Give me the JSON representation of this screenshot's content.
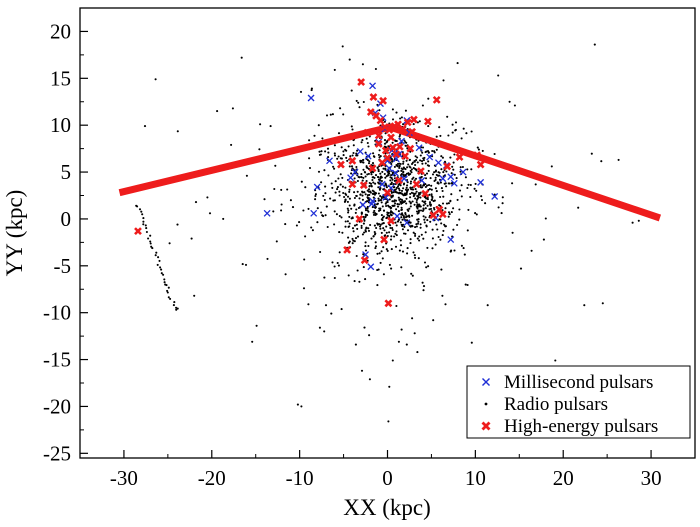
{
  "chart_data": {
    "type": "scatter",
    "title": "",
    "xlabel": "XX (kpc)",
    "ylabel": "YY (kpc)",
    "xlim": [
      -35,
      35
    ],
    "ylim": [
      -25.5,
      22.5
    ],
    "xticks": [
      -30,
      -20,
      -10,
      0,
      10,
      20,
      30
    ],
    "yticks": [
      -25,
      -20,
      -15,
      -10,
      -5,
      0,
      5,
      10,
      15,
      20
    ],
    "xtick_labels": [
      "-30",
      "-20",
      "-10",
      "0",
      "10",
      "20",
      "30"
    ],
    "ytick_labels": [
      "-25",
      "-20",
      "-15",
      "-10",
      "-5",
      "0",
      "5",
      "10",
      "15",
      "20"
    ],
    "grid": false,
    "legend_position": "bottom-right",
    "legend": [
      "Millisecond pulsars",
      "Radio pulsars",
      "High-energy pulsars"
    ],
    "colors": {
      "millisecond": "#1f2fd6",
      "radio": "#000000",
      "high_energy": "#ee1c1c",
      "line": "#ee1c1c"
    },
    "line_series": {
      "x": [
        -30.5,
        0.3,
        31
      ],
      "y": [
        2.8,
        9.8,
        0.1
      ]
    },
    "series": [
      {
        "name": "Millisecond pulsars",
        "marker": "x",
        "x": [
          -8.7,
          -8.4,
          -8.0,
          -6.6,
          -4.2,
          -3.1,
          -2.8,
          -2.2,
          -1.7,
          -1.4,
          -1.0,
          -0.8,
          -0.5,
          -0.3,
          0.0,
          0.2,
          0.5,
          0.8,
          1.0,
          1.3,
          1.6,
          1.9,
          2.2,
          2.5,
          0.4,
          -0.2,
          1.1,
          -1.9,
          -2.5,
          4.8,
          5.8,
          6.3,
          6.7,
          7.2,
          7.6,
          8.6,
          10.6,
          12.2,
          7.2,
          5.5,
          2.2,
          -1.8,
          -1.7,
          -3.7,
          -13.7,
          1.2,
          0.9,
          -0.6,
          3.6,
          3.9
        ],
        "y": [
          12.9,
          0.6,
          3.4,
          6.2,
          4.4,
          7.2,
          1.5,
          6.7,
          14.2,
          11.3,
          8.2,
          12.3,
          10.8,
          9.6,
          6.2,
          5.4,
          7.3,
          7.0,
          6.4,
          6.9,
          8.3,
          4.3,
          10.5,
          9.2,
          3.3,
          2.3,
          0.3,
          -5.1,
          -3.8,
          6.6,
          6.0,
          4.3,
          5.7,
          4.5,
          3.8,
          5.0,
          3.9,
          2.4,
          -2.2,
          0.1,
          -0.4,
          1.6,
          1.9,
          5.0,
          0.6,
          4.1,
          4.9,
          3.7,
          7.6,
          4.1
        ]
      },
      {
        "name": "High-energy pulsars",
        "marker": "filled-x",
        "x": [
          -28.4,
          -5.3,
          -4.6,
          -4.0,
          -3.0,
          -2.6,
          -2.3,
          -1.6,
          -1.3,
          -1.0,
          -0.8,
          -0.6,
          -0.5,
          -0.3,
          -0.2,
          0.0,
          0.2,
          0.4,
          0.6,
          0.8,
          1.0,
          1.2,
          1.4,
          1.7,
          2.0,
          2.3,
          2.6,
          3.0,
          3.3,
          3.8,
          4.3,
          5.2,
          5.6,
          5.9,
          6.3,
          6.8,
          8.2,
          10.2,
          10.6,
          -1.0,
          -0.4,
          0.4,
          1.3,
          0.1,
          -3.2,
          -4.0,
          -2.7,
          -1.9,
          0.0,
          2.8,
          4.6,
          -1.7
        ],
        "y": [
          -1.3,
          5.8,
          -3.3,
          3.7,
          14.6,
          -4.4,
          9.2,
          13.0,
          11.0,
          8.0,
          10.5,
          6.0,
          12.6,
          9.8,
          7.3,
          6.5,
          9.5,
          8.7,
          7.6,
          9.9,
          6.9,
          10.1,
          7.7,
          9.6,
          6.7,
          10.3,
          7.5,
          10.6,
          3.7,
          5.1,
          2.7,
          0.4,
          12.7,
          1.0,
          0.5,
          5.6,
          6.6,
          6.8,
          5.8,
          8.9,
          -2.2,
          -0.2,
          4.1,
          -9.0,
          0.0,
          6.2,
          3.6,
          11.4,
          2.8,
          9.3,
          10.4,
          5.4
        ]
      }
    ],
    "radio_pulsars": {
      "name": "Radio pulsars",
      "marker": "dot",
      "generated": true,
      "center": [
        0.5,
        3.0
      ],
      "spread": [
        3.6,
        3.2
      ],
      "count": 1250,
      "outliers": {
        "x": [
          -26.4,
          -28.6,
          -27.6,
          -23.9,
          -21.8,
          -20.5,
          -19.4,
          -18.7,
          -17.8,
          -16.6,
          -14.5,
          -13.3,
          -12.1,
          -11.0,
          -9.5,
          -9.0,
          -8.6,
          -7.7,
          -7.0,
          -6.4,
          -6.0,
          -5.1,
          -4.3,
          -3.6,
          -3.2,
          -2.8,
          -2.1,
          -1.0,
          0.1,
          1.3,
          2.2,
          3.1,
          4.0,
          5.4,
          6.6,
          7.8,
          8.9,
          10.1,
          11.4,
          12.6,
          13.9,
          15.2,
          16.4,
          17.8,
          19.1,
          20.8,
          22.4,
          23.6,
          24.5,
          26.3,
          27.9,
          28.6,
          -15.4,
          -14.9,
          -11.6,
          -10.2,
          -9.8,
          -7.2,
          8.8,
          10.4,
          14.5,
          18.7,
          21.7,
          -20.2,
          -22.3,
          -13.0,
          -12.6,
          -16.1,
          -2.0,
          0.2,
          0.6,
          3.4,
          5.2,
          7.4,
          12.2,
          -25.3,
          -24.8,
          -22.0,
          -16.0,
          -14.0,
          -6.0,
          -5.5,
          -3.4,
          -2.9,
          1.6,
          2.8,
          4.1,
          6.8,
          9.6,
          13.0
        ],
        "y": [
          14.9,
          1.4,
          9.9,
          -0.6,
          1.8,
          2.3,
          11.5,
          0.0,
          7.9,
          17.2,
          10.1,
          9.9,
          3.1,
          2.0,
          -7.4,
          -9.1,
          13.9,
          -11.6,
          -9.2,
          -10.1,
          15.9,
          18.4,
          17.0,
          -13.4,
          -6.7,
          16.5,
          -12.4,
          5.1,
          -21.6,
          -13.1,
          -13.4,
          -12.2,
          -6.8,
          5.7,
          -9.1,
          10.3,
          -7.0,
          3.0,
          -9.2,
          15.3,
          12.5,
          -5.3,
          -3.4,
          -2.2,
          -15.1,
          3.1,
          -9.2,
          18.6,
          -9.0,
          6.3,
          -0.4,
          -0.2,
          -13.1,
          -11.4,
          -5.9,
          -19.8,
          -20.0,
          -12.0,
          -3.8,
          7.4,
          12.1,
          5.6,
          1.2,
          0.6,
          -2.1,
          0.8,
          -2.4,
          -4.9,
          -17.1,
          -17.9,
          -15.1,
          -14.2,
          -10.8,
          -1.9,
          2.6,
          -7.0,
          -2.6,
          -8.2,
          4.6,
          2.1,
          -6.3,
          -1.4,
          -5.5,
          -16.2,
          -11.8,
          -10.6,
          -7.6,
          10.9,
          -13.2,
          -16.8
        ]
      },
      "arm_track": {
        "x": [
          -28.4,
          -24.2,
          -24.0
        ],
        "y": [
          1.4,
          -9.5,
          -9.6
        ],
        "count": 38
      }
    }
  }
}
